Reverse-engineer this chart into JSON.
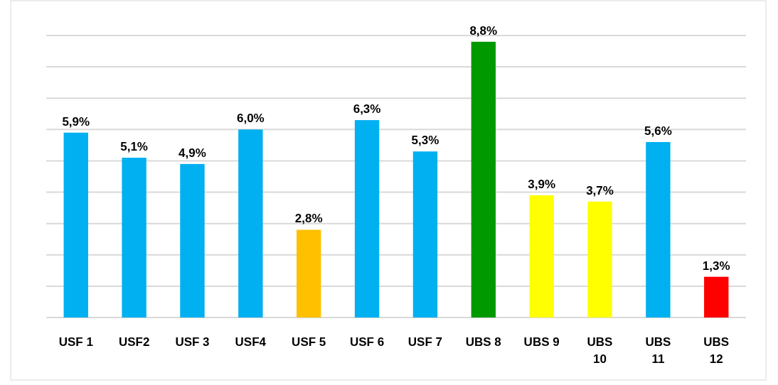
{
  "chart_data": {
    "type": "bar",
    "categories": [
      "USF 1",
      "USF2",
      "USF 3",
      "USF4",
      "USF 5",
      "USF 6",
      "USF 7",
      "UBS 8",
      "UBS 9",
      "UBS 10",
      "UBS 11",
      "UBS 12"
    ],
    "values": [
      5.9,
      5.1,
      4.9,
      6.0,
      2.8,
      6.3,
      5.3,
      8.8,
      3.9,
      3.7,
      5.6,
      1.3
    ],
    "colors": [
      "#00b0f0",
      "#00b0f0",
      "#00b0f0",
      "#00b0f0",
      "#ffc000",
      "#00b0f0",
      "#00b0f0",
      "#009900",
      "#ffff00",
      "#ffff00",
      "#00b0f0",
      "#ff0000"
    ],
    "value_labels": [
      "5,9%",
      "5,1%",
      "4,9%",
      "6,0%",
      "2,8%",
      "6,3%",
      "5,3%",
      "8,8%",
      "3,9%",
      "3,7%",
      "5,6%",
      "1,3%"
    ],
    "ylim": [
      0,
      9
    ],
    "yticks": [
      {
        "value": 0,
        "label": null
      },
      {
        "value": 1,
        "label": null
      },
      {
        "value": 2,
        "label": null
      },
      {
        "value": 3,
        "label": null
      },
      {
        "value": 4,
        "label": null
      },
      {
        "value": 5,
        "label": null
      },
      {
        "value": 6,
        "label": null
      },
      {
        "value": 7,
        "label": null
      },
      {
        "value": 8,
        "label": null
      },
      {
        "value": 9,
        "label": null
      }
    ],
    "grid": "y",
    "tick_labels": "x"
  }
}
